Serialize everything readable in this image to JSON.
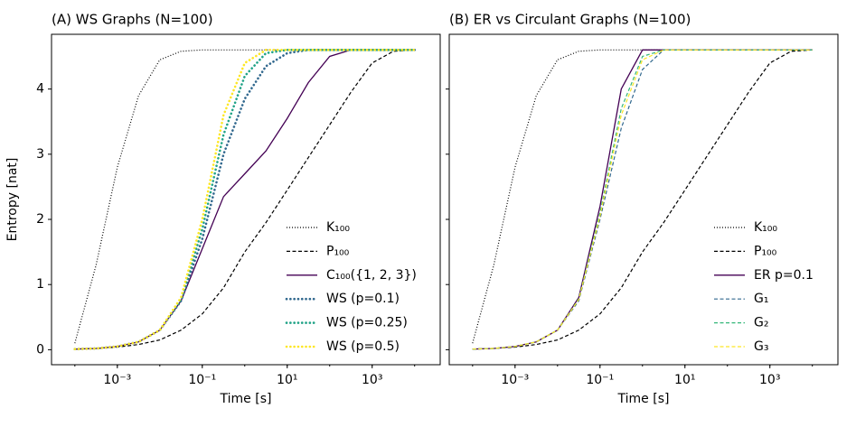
{
  "chart_data": [
    {
      "type": "line",
      "title": "(A) WS Graphs (N=100)",
      "xlabel": "Time [s]",
      "ylabel": "Entropy [nat]",
      "xscale": "log",
      "xlim": [
        2.82e-05,
        40000
      ],
      "ylim": [
        -0.23,
        4.84
      ],
      "xticks": [
        {
          "value": 0.001,
          "label": "10⁻³"
        },
        {
          "value": 0.1,
          "label": "10⁻¹"
        },
        {
          "value": 10,
          "label": "10¹"
        },
        {
          "value": 1000,
          "label": "10³"
        }
      ],
      "yticks": [
        0,
        1,
        2,
        3,
        4
      ],
      "show_ytick_labels": true,
      "legend": "lower right",
      "x": [
        0.0001,
        0.000316,
        0.001,
        0.00316,
        0.01,
        0.0316,
        0.1,
        0.316,
        1,
        3.16,
        10,
        31.6,
        100,
        316,
        1000,
        3162,
        10000
      ],
      "series": [
        {
          "name": "K₁₀₀",
          "color": "#000000",
          "style": "dotted",
          "values": [
            0.1,
            1.3,
            2.8,
            3.9,
            4.45,
            4.58,
            4.6,
            4.6,
            4.6,
            4.6,
            4.6,
            4.6,
            4.6,
            4.6,
            4.6,
            4.6,
            4.6
          ]
        },
        {
          "name": "P₁₀₀",
          "color": "#000000",
          "style": "dashed",
          "values": [
            0.01,
            0.02,
            0.04,
            0.08,
            0.15,
            0.3,
            0.55,
            0.95,
            1.5,
            1.95,
            2.45,
            2.95,
            3.45,
            3.95,
            4.4,
            4.58,
            4.6
          ]
        },
        {
          "name": "C₁₀₀({1, 2, 3})",
          "color": "#440154",
          "style": "solid",
          "values": [
            0.01,
            0.02,
            0.05,
            0.12,
            0.3,
            0.75,
            1.55,
            2.35,
            2.7,
            3.05,
            3.55,
            4.1,
            4.5,
            4.6,
            4.6,
            4.6,
            4.6
          ]
        },
        {
          "name": "WS (p=0.1)",
          "color": "#31688e",
          "style": "thickdot",
          "values": [
            0.01,
            0.02,
            0.05,
            0.12,
            0.3,
            0.75,
            1.7,
            3.0,
            3.85,
            4.35,
            4.55,
            4.6,
            4.6,
            4.6,
            4.6,
            4.6,
            4.6
          ]
        },
        {
          "name": "WS (p=0.25)",
          "color": "#21a387",
          "style": "thickdot",
          "values": [
            0.01,
            0.02,
            0.05,
            0.12,
            0.3,
            0.78,
            1.85,
            3.3,
            4.2,
            4.55,
            4.6,
            4.6,
            4.6,
            4.6,
            4.6,
            4.6,
            4.6
          ]
        },
        {
          "name": "WS (p=0.5)",
          "color": "#fde725",
          "style": "thickdot",
          "values": [
            0.01,
            0.02,
            0.05,
            0.12,
            0.3,
            0.8,
            2.0,
            3.6,
            4.4,
            4.6,
            4.6,
            4.6,
            4.6,
            4.6,
            4.6,
            4.6,
            4.6
          ]
        }
      ]
    },
    {
      "type": "line",
      "title": "(B) ER vs Circulant Graphs (N=100)",
      "xlabel": "Time [s]",
      "xscale": "log",
      "xlim": [
        2.82e-05,
        40000
      ],
      "ylim": [
        -0.23,
        4.84
      ],
      "xticks": [
        {
          "value": 0.001,
          "label": "10⁻³"
        },
        {
          "value": 0.1,
          "label": "10⁻¹"
        },
        {
          "value": 10,
          "label": "10¹"
        },
        {
          "value": 1000,
          "label": "10³"
        }
      ],
      "yticks": [
        0,
        1,
        2,
        3,
        4
      ],
      "show_ytick_labels": false,
      "legend": "lower right",
      "x": [
        0.0001,
        0.000316,
        0.001,
        0.00316,
        0.01,
        0.0316,
        0.1,
        0.316,
        1,
        3.16,
        10,
        31.6,
        100,
        316,
        1000,
        3162,
        10000
      ],
      "series": [
        {
          "name": "K₁₀₀",
          "color": "#000000",
          "style": "dotted",
          "values": [
            0.1,
            1.3,
            2.8,
            3.9,
            4.45,
            4.58,
            4.6,
            4.6,
            4.6,
            4.6,
            4.6,
            4.6,
            4.6,
            4.6,
            4.6,
            4.6,
            4.6
          ]
        },
        {
          "name": "P₁₀₀",
          "color": "#000000",
          "style": "dashed",
          "values": [
            0.01,
            0.02,
            0.04,
            0.08,
            0.15,
            0.3,
            0.55,
            0.95,
            1.5,
            1.95,
            2.45,
            2.95,
            3.45,
            3.95,
            4.4,
            4.58,
            4.6
          ]
        },
        {
          "name": "ER p=0.1",
          "color": "#440154",
          "style": "solid",
          "values": [
            0.01,
            0.02,
            0.05,
            0.12,
            0.3,
            0.8,
            2.2,
            4.0,
            4.6,
            4.6,
            4.6,
            4.6,
            4.6,
            4.6,
            4.6,
            4.6,
            4.6
          ]
        },
        {
          "name": "G₁",
          "color": "#31688e",
          "style": "dashed",
          "values": [
            0.01,
            0.02,
            0.05,
            0.12,
            0.3,
            0.75,
            2.0,
            3.4,
            4.3,
            4.6,
            4.6,
            4.6,
            4.6,
            4.6,
            4.6,
            4.6,
            4.6
          ]
        },
        {
          "name": "G₂",
          "color": "#35b779",
          "style": "dashed",
          "values": [
            0.01,
            0.02,
            0.05,
            0.12,
            0.3,
            0.78,
            2.1,
            3.7,
            4.5,
            4.6,
            4.6,
            4.6,
            4.6,
            4.6,
            4.6,
            4.6,
            4.6
          ]
        },
        {
          "name": "G₃",
          "color": "#fde725",
          "style": "dashed",
          "values": [
            0.01,
            0.02,
            0.05,
            0.12,
            0.3,
            0.77,
            2.05,
            3.6,
            4.45,
            4.6,
            4.6,
            4.6,
            4.6,
            4.6,
            4.6,
            4.6,
            4.6
          ]
        }
      ]
    }
  ]
}
